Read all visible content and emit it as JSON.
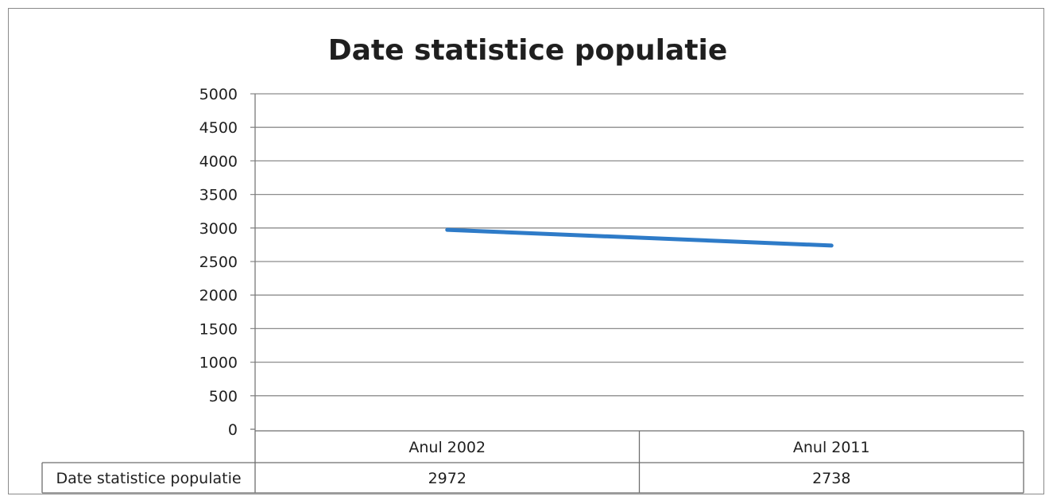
{
  "chart_data": {
    "type": "line",
    "title": "Date statistice populatie",
    "categories": [
      "Anul 2002",
      "Anul 2011"
    ],
    "series": [
      {
        "name": "Date statistice populatie",
        "values": [
          2972,
          2738
        ],
        "color": "#2e7bc8"
      }
    ],
    "ylim": [
      0,
      5000
    ],
    "y_ticks": [
      0,
      500,
      1000,
      1500,
      2000,
      2500,
      3000,
      3500,
      4000,
      4500,
      5000
    ],
    "grid": true,
    "legend": "data-table-below"
  }
}
